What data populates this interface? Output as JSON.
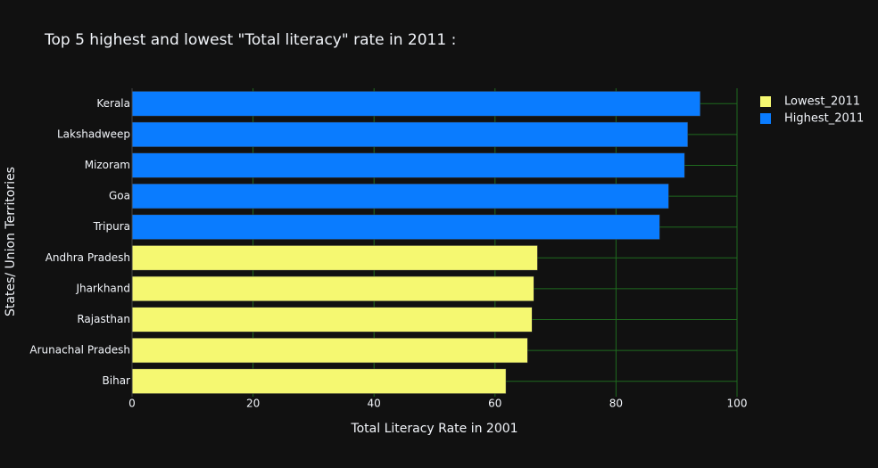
{
  "chart_data": {
    "type": "bar",
    "orientation": "horizontal",
    "title": "Top 5 highest and lowest \"Total literacy\" rate in 2011 :",
    "xlabel": "Total Literacy Rate in 2001",
    "ylabel": "States/ Union Territories",
    "categories": [
      "Bihar",
      "Arunachal Pradesh",
      "Rajasthan",
      "Jharkhand",
      "Andhra Pradesh",
      "Tripura",
      "Goa",
      "Mizoram",
      "Lakshadweep",
      "Kerala"
    ],
    "series": [
      {
        "name": "Lowest_2011",
        "color": "#f5f871",
        "values": [
          61.8,
          65.38,
          66.11,
          66.41,
          67.02,
          null,
          null,
          null,
          null,
          null
        ]
      },
      {
        "name": "Highest_2011",
        "color": "#0a7cff",
        "values": [
          null,
          null,
          null,
          null,
          null,
          87.22,
          88.7,
          91.33,
          91.85,
          93.91
        ]
      }
    ],
    "xlim": [
      0,
      100
    ],
    "xticks": [
      0,
      20,
      40,
      60,
      80,
      100
    ],
    "grid": true,
    "legend": "upper right"
  }
}
